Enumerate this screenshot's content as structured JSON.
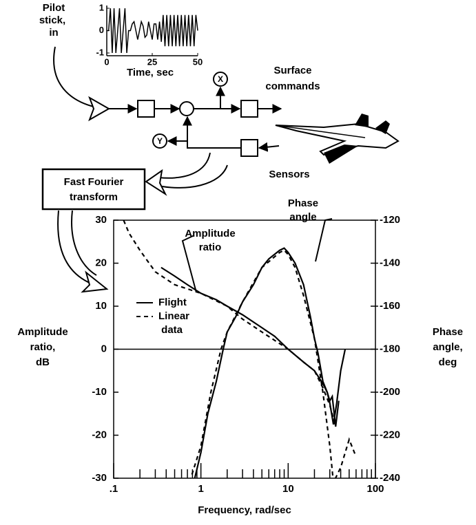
{
  "diagram": {
    "input_label": [
      "Pilot",
      "stick,",
      "in"
    ],
    "x_node": "X",
    "y_node": "Y",
    "surface_label": [
      "Surface",
      "commands"
    ],
    "sensors_label": "Sensors",
    "fft_label": [
      "Fast Fourier",
      "transform"
    ]
  },
  "chart_data": [
    {
      "type": "line",
      "x_label": "Time, sec",
      "color": "#000000",
      "x": [
        0,
        1,
        2,
        3,
        4,
        5,
        6,
        7,
        8,
        9,
        10,
        11,
        12,
        13,
        14,
        15,
        16,
        17,
        18,
        19,
        20,
        21,
        22,
        23,
        24,
        25,
        26,
        27,
        28,
        29,
        30,
        31,
        32,
        33,
        34,
        35,
        36,
        37,
        38,
        39,
        40,
        41,
        42,
        43,
        44,
        45,
        46,
        47,
        48,
        49,
        50
      ],
      "values": [
        0,
        0,
        1,
        -1,
        1,
        -1,
        0,
        1,
        -1,
        0,
        1,
        -1,
        0,
        0,
        0.3,
        0.4,
        0,
        -0.4,
        0,
        0.4,
        0.2,
        -0.3,
        -0.2,
        0.4,
        0,
        -0.4,
        0.3,
        0.3,
        -0.4,
        0.4,
        -0.5,
        0.7,
        -0.7,
        0.7,
        -0.7,
        0.7,
        -0.7,
        0.7,
        -0.7,
        0.7,
        -0.7,
        0.7,
        -0.7,
        0.7,
        -0.7,
        0.7,
        -0.7,
        0.7,
        -0.7,
        0.7,
        0
      ],
      "xlim": [
        0,
        50
      ],
      "xticks": [
        0,
        25,
        50
      ],
      "ylim": [
        -1,
        1
      ],
      "yticks": [
        -1,
        0,
        1
      ]
    },
    {
      "type": "line",
      "x_label": "Frequency, rad/sec",
      "y_label": [
        "Amplitude",
        "ratio,",
        "dB"
      ],
      "y2_label": [
        "Phase",
        "angle,",
        "deg"
      ],
      "log_x": true,
      "xlim": [
        0.1,
        100
      ],
      "xticks": [
        {
          "value": 0.1,
          "label": ".1"
        },
        1,
        10,
        100
      ],
      "minor_xticks": [
        0.2,
        0.3,
        0.4,
        0.5,
        0.6,
        0.7,
        0.8,
        0.9,
        2,
        3,
        4,
        5,
        6,
        7,
        8,
        9,
        20,
        30,
        40,
        50,
        60,
        70,
        80,
        90
      ],
      "ylim": [
        -30,
        30
      ],
      "yticks": [
        -30,
        -20,
        -10,
        0,
        10,
        20,
        30
      ],
      "y2lim": [
        -240,
        -120
      ],
      "y2ticks": [
        -240,
        -220,
        -200,
        -180,
        -160,
        -140,
        -120
      ],
      "zero_line": true,
      "annotations": [
        [
          "Amplitude",
          "ratio"
        ],
        [
          "Phase",
          "angle"
        ]
      ],
      "series": [
        {
          "name": "Flight",
          "dash": false,
          "color": "#000000",
          "x": [
            0.35,
            0.5,
            0.7,
            1,
            1.5,
            2,
            3,
            5,
            7,
            10,
            15,
            20,
            25,
            28,
            30,
            32,
            35,
            38
          ],
          "values": [
            19,
            17,
            15,
            13,
            11.5,
            10,
            8,
            5,
            3,
            0,
            -3,
            -5,
            -8,
            -10,
            -12,
            -11,
            -18,
            -12
          ]
        },
        {
          "name": "Linear data",
          "dash": true,
          "color": "#000000",
          "x": [
            0.13,
            0.15,
            0.2,
            0.3,
            0.5,
            1,
            2,
            3,
            5,
            10,
            15,
            20,
            25,
            30,
            35
          ],
          "values": [
            30,
            27,
            23,
            18,
            15,
            13,
            10,
            7,
            4,
            0,
            -3,
            -5,
            -9,
            -13,
            -18
          ]
        },
        {
          "dash": false,
          "color": "#000000",
          "axis": "y2",
          "x": [
            0.85,
            1,
            1.2,
            1.5,
            1.8,
            2,
            2.5,
            3,
            4,
            5,
            6,
            8,
            9,
            10,
            12,
            15,
            18,
            20,
            22,
            25,
            28,
            30,
            33,
            36,
            40,
            45
          ],
          "values": [
            -240,
            -228,
            -210,
            -195,
            -180,
            -172,
            -165,
            -158,
            -150,
            -142,
            -138,
            -134,
            -133,
            -135,
            -140,
            -150,
            -165,
            -175,
            -182,
            -195,
            -200,
            -205,
            -215,
            -205,
            -190,
            -180
          ]
        },
        {
          "dash": true,
          "color": "#000000",
          "axis": "y2",
          "x": [
            0.7,
            1,
            1.3,
            1.7,
            2,
            3,
            5,
            8,
            9,
            10,
            12,
            15,
            20,
            25,
            30,
            33,
            40,
            50,
            60
          ],
          "values": [
            -245,
            -225,
            -200,
            -180,
            -172,
            -158,
            -142,
            -135,
            -134,
            -136,
            -142,
            -155,
            -175,
            -200,
            -225,
            -242,
            -235,
            -222,
            -230
          ]
        }
      ]
    }
  ]
}
